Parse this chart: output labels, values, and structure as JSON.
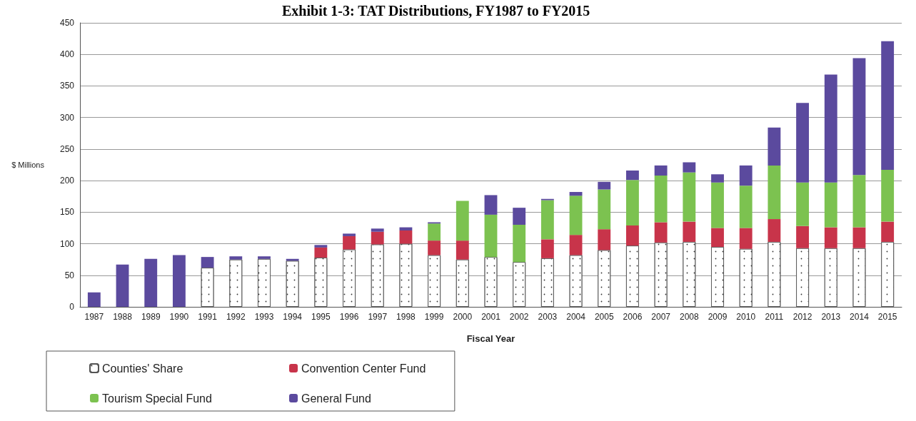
{
  "chart_data": {
    "type": "bar",
    "title": "Exhibit 1-3: TAT Distributions, FY1987 to FY2015",
    "xlabel": "Fiscal Year",
    "ylabel": "$ Millions",
    "categories": [
      "1987",
      "1988",
      "1989",
      "1990",
      "1991",
      "1992",
      "1993",
      "1994",
      "1995",
      "1996",
      "1997",
      "1998",
      "1999",
      "2000",
      "2001",
      "2002",
      "2003",
      "2004",
      "2005",
      "2006",
      "2007",
      "2008",
      "2009",
      "2010",
      "2011",
      "2012",
      "2013",
      "2014",
      "2015"
    ],
    "stacked": true,
    "series": [
      {
        "name": "Counties' Share",
        "color": "#ffffff",
        "values": [
          null,
          null,
          null,
          null,
          62,
          75,
          76,
          73,
          78,
          91,
          99,
          100,
          82,
          75,
          79,
          71,
          77,
          82,
          90,
          97,
          102,
          103,
          95,
          92,
          103,
          93,
          93,
          93,
          103
        ]
      },
      {
        "name": "Convention Center Fund",
        "color": "#c8344a",
        "values": [
          null,
          null,
          null,
          null,
          null,
          null,
          null,
          null,
          16,
          21,
          20,
          21,
          23,
          30,
          null,
          null,
          30,
          32,
          33,
          32,
          32,
          32,
          30,
          33,
          36,
          35,
          33,
          33,
          32
        ]
      },
      {
        "name": "Tourism Special Fund",
        "color": "#7cc250",
        "values": [
          null,
          null,
          null,
          null,
          null,
          null,
          null,
          null,
          null,
          null,
          null,
          null,
          27,
          63,
          67,
          59,
          62,
          62,
          63,
          72,
          74,
          78,
          72,
          67,
          85,
          69,
          71,
          83,
          82
        ]
      },
      {
        "name": "General Fund",
        "color": "#5b4a9e",
        "values": [
          23,
          67,
          76,
          82,
          17,
          5,
          4,
          3,
          4,
          4,
          5,
          5,
          2,
          null,
          31,
          27,
          2,
          6,
          12,
          15,
          16,
          16,
          13,
          32,
          60,
          126,
          171,
          185,
          204
        ]
      }
    ],
    "ylim": [
      0,
      450
    ],
    "yticks": [
      0,
      50,
      100,
      150,
      200,
      250,
      300,
      350,
      400,
      450
    ],
    "grid": "y",
    "legend": "bottom left"
  }
}
